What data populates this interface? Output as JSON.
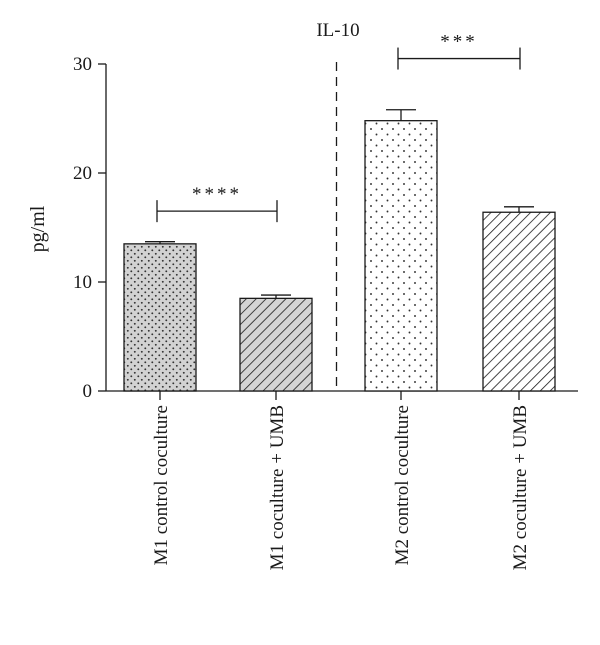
{
  "chart_data": {
    "type": "bar",
    "title": "IL-10",
    "ylabel": "pg/ml",
    "ylim": [
      0,
      30
    ],
    "yticks": [
      0,
      10,
      20,
      30
    ],
    "grid": false,
    "categories": [
      "M1 control coculture",
      "M1 coculture + UMB",
      "M2 control coculture",
      "M2 coculture + UMB"
    ],
    "values": [
      13.5,
      8.5,
      24.8,
      16.4
    ],
    "errors": [
      0.2,
      0.3,
      1.0,
      0.5
    ],
    "patterns": [
      "dense-dots",
      "diagonal-hatch",
      "sparse-dots",
      "diagonal-hatch"
    ],
    "fills": [
      "#d4d4d4",
      "#d4d4d4",
      "#ffffff",
      "#ffffff"
    ],
    "significance": [
      {
        "between": [
          0,
          1
        ],
        "label": "****",
        "y": 16.5
      },
      {
        "between": [
          2,
          3
        ],
        "label": "***",
        "y": 30.5
      }
    ],
    "divider_after_index": 1
  }
}
